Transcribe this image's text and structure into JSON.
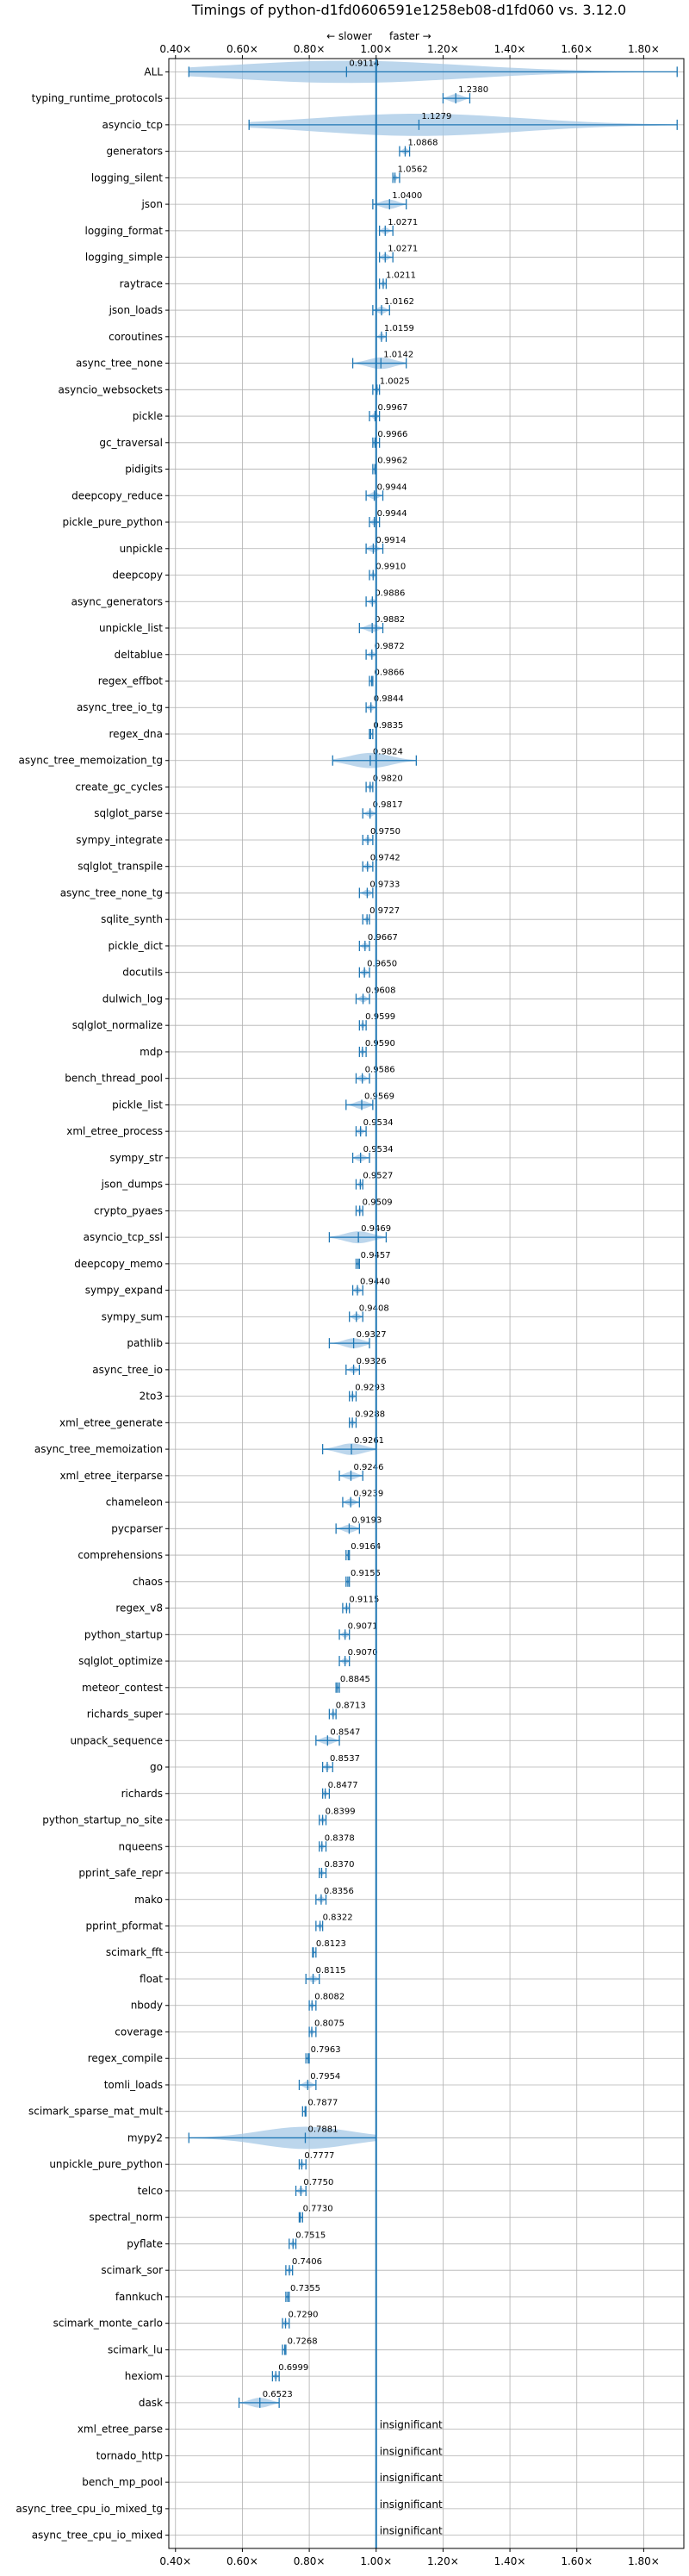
{
  "chart_data": {
    "type": "violin",
    "title": "Timings of python-d1fd0606591e1258eb08-d1fd060 vs. 3.12.0",
    "direction_slower": "← slower",
    "direction_faster": "faster →",
    "x_ticks": [
      "0.40×",
      "0.60×",
      "0.80×",
      "1.00×",
      "1.20×",
      "1.40×",
      "1.60×",
      "1.80×"
    ],
    "x_tick_values": [
      0.4,
      0.6,
      0.8,
      1.0,
      1.2,
      1.4,
      1.6,
      1.8
    ],
    "xlim": [
      0.38,
      1.92
    ],
    "reference_line": 1.0,
    "grid": true,
    "colors": {
      "violin": "#a6c8e6",
      "line": "#1f77b4",
      "median": "#e377c2"
    },
    "rows": [
      {
        "name": "ALL",
        "value": 0.9114,
        "label": "0.9114",
        "min": 0.44,
        "max": 1.9
      },
      {
        "name": "typing_runtime_protocols",
        "value": 1.238,
        "label": "1.2380",
        "min": 1.2,
        "max": 1.28
      },
      {
        "name": "asyncio_tcp",
        "value": 1.1279,
        "label": "1.1279",
        "min": 0.62,
        "max": 1.9
      },
      {
        "name": "generators",
        "value": 1.0868,
        "label": "1.0868",
        "min": 1.07,
        "max": 1.1
      },
      {
        "name": "logging_silent",
        "value": 1.0562,
        "label": "1.0562",
        "min": 1.05,
        "max": 1.07
      },
      {
        "name": "json",
        "value": 1.04,
        "label": "1.0400",
        "min": 0.99,
        "max": 1.09
      },
      {
        "name": "logging_format",
        "value": 1.0271,
        "label": "1.0271",
        "min": 1.01,
        "max": 1.05
      },
      {
        "name": "logging_simple",
        "value": 1.0271,
        "label": "1.0271",
        "min": 1.01,
        "max": 1.05
      },
      {
        "name": "raytrace",
        "value": 1.0211,
        "label": "1.0211",
        "min": 1.01,
        "max": 1.03
      },
      {
        "name": "json_loads",
        "value": 1.0162,
        "label": "1.0162",
        "min": 0.99,
        "max": 1.04
      },
      {
        "name": "coroutines",
        "value": 1.0159,
        "label": "1.0159",
        "min": 1.0,
        "max": 1.03
      },
      {
        "name": "async_tree_none",
        "value": 1.0142,
        "label": "1.0142",
        "min": 0.93,
        "max": 1.09
      },
      {
        "name": "asyncio_websockets",
        "value": 1.0025,
        "label": "1.0025",
        "min": 0.99,
        "max": 1.01
      },
      {
        "name": "pickle",
        "value": 0.9967,
        "label": "0.9967",
        "min": 0.98,
        "max": 1.01
      },
      {
        "name": "gc_traversal",
        "value": 0.9966,
        "label": "0.9966",
        "min": 0.99,
        "max": 1.01
      },
      {
        "name": "pidigits",
        "value": 0.9962,
        "label": "0.9962",
        "min": 0.99,
        "max": 1.0
      },
      {
        "name": "deepcopy_reduce",
        "value": 0.9944,
        "label": "0.9944",
        "min": 0.97,
        "max": 1.02
      },
      {
        "name": "pickle_pure_python",
        "value": 0.9944,
        "label": "0.9944",
        "min": 0.98,
        "max": 1.01
      },
      {
        "name": "unpickle",
        "value": 0.9914,
        "label": "0.9914",
        "min": 0.97,
        "max": 1.02
      },
      {
        "name": "deepcopy",
        "value": 0.991,
        "label": "0.9910",
        "min": 0.98,
        "max": 1.0
      },
      {
        "name": "async_generators",
        "value": 0.9886,
        "label": "0.9886",
        "min": 0.97,
        "max": 1.0
      },
      {
        "name": "unpickle_list",
        "value": 0.9882,
        "label": "0.9882",
        "min": 0.95,
        "max": 1.02
      },
      {
        "name": "deltablue",
        "value": 0.9872,
        "label": "0.9872",
        "min": 0.97,
        "max": 1.0
      },
      {
        "name": "regex_effbot",
        "value": 0.9866,
        "label": "0.9866",
        "min": 0.98,
        "max": 0.99
      },
      {
        "name": "async_tree_io_tg",
        "value": 0.9844,
        "label": "0.9844",
        "min": 0.97,
        "max": 1.0
      },
      {
        "name": "regex_dna",
        "value": 0.9835,
        "label": "0.9835",
        "min": 0.98,
        "max": 0.99
      },
      {
        "name": "async_tree_memoization_tg",
        "value": 0.9824,
        "label": "0.9824",
        "min": 0.87,
        "max": 1.12
      },
      {
        "name": "create_gc_cycles",
        "value": 0.982,
        "label": "0.9820",
        "min": 0.97,
        "max": 0.99
      },
      {
        "name": "sqlglot_parse",
        "value": 0.9817,
        "label": "0.9817",
        "min": 0.96,
        "max": 1.0
      },
      {
        "name": "sympy_integrate",
        "value": 0.975,
        "label": "0.9750",
        "min": 0.96,
        "max": 0.99
      },
      {
        "name": "sqlglot_transpile",
        "value": 0.9742,
        "label": "0.9742",
        "min": 0.96,
        "max": 0.99
      },
      {
        "name": "async_tree_none_tg",
        "value": 0.9733,
        "label": "0.9733",
        "min": 0.95,
        "max": 0.99
      },
      {
        "name": "sqlite_synth",
        "value": 0.9727,
        "label": "0.9727",
        "min": 0.96,
        "max": 0.98
      },
      {
        "name": "pickle_dict",
        "value": 0.9667,
        "label": "0.9667",
        "min": 0.95,
        "max": 0.98
      },
      {
        "name": "docutils",
        "value": 0.965,
        "label": "0.9650",
        "min": 0.95,
        "max": 0.98
      },
      {
        "name": "dulwich_log",
        "value": 0.9608,
        "label": "0.9608",
        "min": 0.94,
        "max": 0.98
      },
      {
        "name": "sqlglot_normalize",
        "value": 0.9599,
        "label": "0.9599",
        "min": 0.95,
        "max": 0.97
      },
      {
        "name": "mdp",
        "value": 0.959,
        "label": "0.9590",
        "min": 0.95,
        "max": 0.97
      },
      {
        "name": "bench_thread_pool",
        "value": 0.9586,
        "label": "0.9586",
        "min": 0.94,
        "max": 0.98
      },
      {
        "name": "pickle_list",
        "value": 0.9569,
        "label": "0.9569",
        "min": 0.91,
        "max": 0.99
      },
      {
        "name": "xml_etree_process",
        "value": 0.9534,
        "label": "0.9534",
        "min": 0.94,
        "max": 0.97
      },
      {
        "name": "sympy_str",
        "value": 0.9534,
        "label": "0.9534",
        "min": 0.93,
        "max": 0.98
      },
      {
        "name": "json_dumps",
        "value": 0.9527,
        "label": "0.9527",
        "min": 0.94,
        "max": 0.96
      },
      {
        "name": "crypto_pyaes",
        "value": 0.9509,
        "label": "0.9509",
        "min": 0.94,
        "max": 0.96
      },
      {
        "name": "asyncio_tcp_ssl",
        "value": 0.9469,
        "label": "0.9469",
        "min": 0.86,
        "max": 1.03
      },
      {
        "name": "deepcopy_memo",
        "value": 0.9457,
        "label": "0.9457",
        "min": 0.94,
        "max": 0.95
      },
      {
        "name": "sympy_expand",
        "value": 0.944,
        "label": "0.9440",
        "min": 0.93,
        "max": 0.96
      },
      {
        "name": "sympy_sum",
        "value": 0.9408,
        "label": "0.9408",
        "min": 0.92,
        "max": 0.96
      },
      {
        "name": "pathlib",
        "value": 0.9327,
        "label": "0.9327",
        "min": 0.86,
        "max": 0.98
      },
      {
        "name": "async_tree_io",
        "value": 0.9326,
        "label": "0.9326",
        "min": 0.91,
        "max": 0.95
      },
      {
        "name": "2to3",
        "value": 0.9293,
        "label": "0.9293",
        "min": 0.92,
        "max": 0.94
      },
      {
        "name": "xml_etree_generate",
        "value": 0.9288,
        "label": "0.9288",
        "min": 0.92,
        "max": 0.94
      },
      {
        "name": "async_tree_memoization",
        "value": 0.9261,
        "label": "0.9261",
        "min": 0.84,
        "max": 1.0
      },
      {
        "name": "xml_etree_iterparse",
        "value": 0.9246,
        "label": "0.9246",
        "min": 0.89,
        "max": 0.96
      },
      {
        "name": "chameleon",
        "value": 0.9239,
        "label": "0.9239",
        "min": 0.9,
        "max": 0.95
      },
      {
        "name": "pycparser",
        "value": 0.9193,
        "label": "0.9193",
        "min": 0.88,
        "max": 0.95
      },
      {
        "name": "comprehensions",
        "value": 0.9164,
        "label": "0.9164",
        "min": 0.91,
        "max": 0.92
      },
      {
        "name": "chaos",
        "value": 0.9155,
        "label": "0.9155",
        "min": 0.91,
        "max": 0.92
      },
      {
        "name": "regex_v8",
        "value": 0.9115,
        "label": "0.9115",
        "min": 0.9,
        "max": 0.92
      },
      {
        "name": "python_startup",
        "value": 0.9071,
        "label": "0.9071",
        "min": 0.89,
        "max": 0.92
      },
      {
        "name": "sqlglot_optimize",
        "value": 0.907,
        "label": "0.9070",
        "min": 0.89,
        "max": 0.92
      },
      {
        "name": "meteor_contest",
        "value": 0.8845,
        "label": "0.8845",
        "min": 0.88,
        "max": 0.89
      },
      {
        "name": "richards_super",
        "value": 0.8713,
        "label": "0.8713",
        "min": 0.86,
        "max": 0.88
      },
      {
        "name": "unpack_sequence",
        "value": 0.8547,
        "label": "0.8547",
        "min": 0.82,
        "max": 0.89
      },
      {
        "name": "go",
        "value": 0.8537,
        "label": "0.8537",
        "min": 0.84,
        "max": 0.87
      },
      {
        "name": "richards",
        "value": 0.8477,
        "label": "0.8477",
        "min": 0.84,
        "max": 0.86
      },
      {
        "name": "python_startup_no_site",
        "value": 0.8399,
        "label": "0.8399",
        "min": 0.83,
        "max": 0.85
      },
      {
        "name": "nqueens",
        "value": 0.8378,
        "label": "0.8378",
        "min": 0.83,
        "max": 0.85
      },
      {
        "name": "pprint_safe_repr",
        "value": 0.837,
        "label": "0.8370",
        "min": 0.83,
        "max": 0.85
      },
      {
        "name": "mako",
        "value": 0.8356,
        "label": "0.8356",
        "min": 0.82,
        "max": 0.85
      },
      {
        "name": "pprint_pformat",
        "value": 0.8322,
        "label": "0.8322",
        "min": 0.82,
        "max": 0.84
      },
      {
        "name": "scimark_fft",
        "value": 0.8123,
        "label": "0.8123",
        "min": 0.81,
        "max": 0.82
      },
      {
        "name": "float",
        "value": 0.8115,
        "label": "0.8115",
        "min": 0.79,
        "max": 0.83
      },
      {
        "name": "nbody",
        "value": 0.8082,
        "label": "0.8082",
        "min": 0.8,
        "max": 0.82
      },
      {
        "name": "coverage",
        "value": 0.8075,
        "label": "0.8075",
        "min": 0.8,
        "max": 0.82
      },
      {
        "name": "regex_compile",
        "value": 0.7963,
        "label": "0.7963",
        "min": 0.79,
        "max": 0.8
      },
      {
        "name": "tomli_loads",
        "value": 0.7954,
        "label": "0.7954",
        "min": 0.77,
        "max": 0.82
      },
      {
        "name": "scimark_sparse_mat_mult",
        "value": 0.7877,
        "label": "0.7877",
        "min": 0.78,
        "max": 0.79
      },
      {
        "name": "mypy2",
        "value": 0.7881,
        "label": "0.7881",
        "min": 0.44,
        "max": 1.0
      },
      {
        "name": "unpickle_pure_python",
        "value": 0.7777,
        "label": "0.7777",
        "min": 0.77,
        "max": 0.79
      },
      {
        "name": "telco",
        "value": 0.775,
        "label": "0.7750",
        "min": 0.76,
        "max": 0.79
      },
      {
        "name": "spectral_norm",
        "value": 0.773,
        "label": "0.7730",
        "min": 0.77,
        "max": 0.78
      },
      {
        "name": "pyflate",
        "value": 0.7515,
        "label": "0.7515",
        "min": 0.74,
        "max": 0.76
      },
      {
        "name": "scimark_sor",
        "value": 0.7406,
        "label": "0.7406",
        "min": 0.73,
        "max": 0.75
      },
      {
        "name": "fannkuch",
        "value": 0.7355,
        "label": "0.7355",
        "min": 0.73,
        "max": 0.74
      },
      {
        "name": "scimark_monte_carlo",
        "value": 0.729,
        "label": "0.7290",
        "min": 0.72,
        "max": 0.74
      },
      {
        "name": "scimark_lu",
        "value": 0.7268,
        "label": "0.7268",
        "min": 0.72,
        "max": 0.73
      },
      {
        "name": "hexiom",
        "value": 0.6999,
        "label": "0.6999",
        "min": 0.69,
        "max": 0.71
      },
      {
        "name": "dask",
        "value": 0.6523,
        "label": "0.6523",
        "min": 0.59,
        "max": 0.71
      },
      {
        "name": "xml_etree_parse",
        "value": null,
        "label": "insignificant"
      },
      {
        "name": "tornado_http",
        "value": null,
        "label": "insignificant"
      },
      {
        "name": "bench_mp_pool",
        "value": null,
        "label": "insignificant"
      },
      {
        "name": "async_tree_cpu_io_mixed_tg",
        "value": null,
        "label": "insignificant"
      },
      {
        "name": "async_tree_cpu_io_mixed",
        "value": null,
        "label": "insignificant"
      }
    ]
  }
}
